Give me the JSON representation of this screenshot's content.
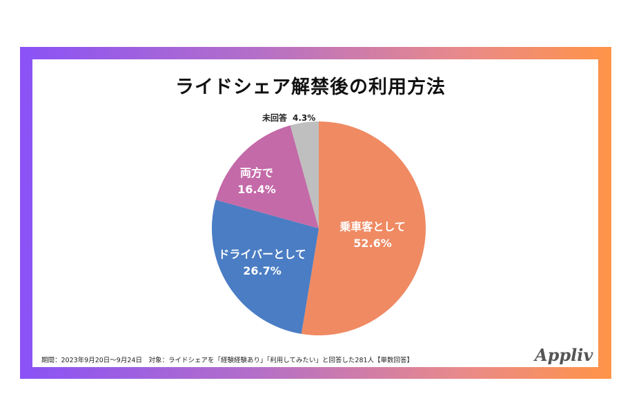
{
  "chart_data": {
    "type": "pie",
    "title": "ライドシェア解禁後の利用方法",
    "slices": [
      {
        "label": "乗車客として",
        "value": 52.6,
        "value_label": "52.6%",
        "color": "#ef8a63"
      },
      {
        "label": "ドライバーとして",
        "value": 26.7,
        "value_label": "26.7%",
        "color": "#4a7dc4"
      },
      {
        "label": "両方で",
        "value": 16.4,
        "value_label": "16.4%",
        "color": "#c46aa8"
      },
      {
        "label": "未回答",
        "value": 4.3,
        "value_label": "4.3%",
        "color": "#bfbfbf"
      }
    ],
    "start": "12 o'clock",
    "direction": "clockwise"
  },
  "footer": "期間：2023年9月20日〜9月24日　対象：ライドシェアを「経験経験あり」「利用してみたい」と回答した281人【単数回答】",
  "logo": "Appliv",
  "frame_colors": {
    "left": "#8a52f6",
    "right": "#ff9447"
  }
}
